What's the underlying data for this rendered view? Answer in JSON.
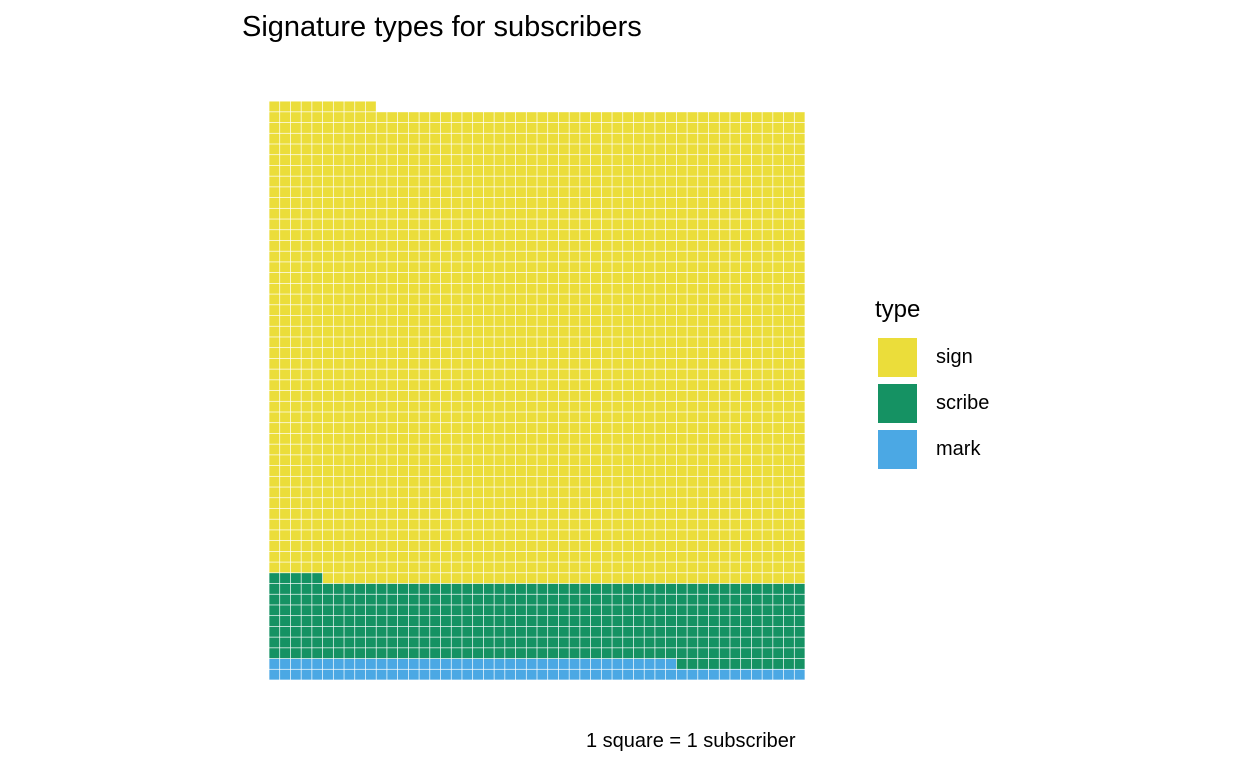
{
  "chart_data": {
    "type": "waffle",
    "title": "Signature types for subscribers",
    "caption": "1 square = 1 subscriber",
    "legend_title": "type",
    "legend_position": "right",
    "unit": "1 square = 1 subscriber",
    "columns": 50,
    "series": [
      {
        "name": "sign",
        "value": 2205,
        "color": "#EBDD3A"
      },
      {
        "name": "scribe",
        "value": 367,
        "color": "#159263"
      },
      {
        "name": "mark",
        "value": 88,
        "color": "#4BA8E4"
      }
    ]
  }
}
